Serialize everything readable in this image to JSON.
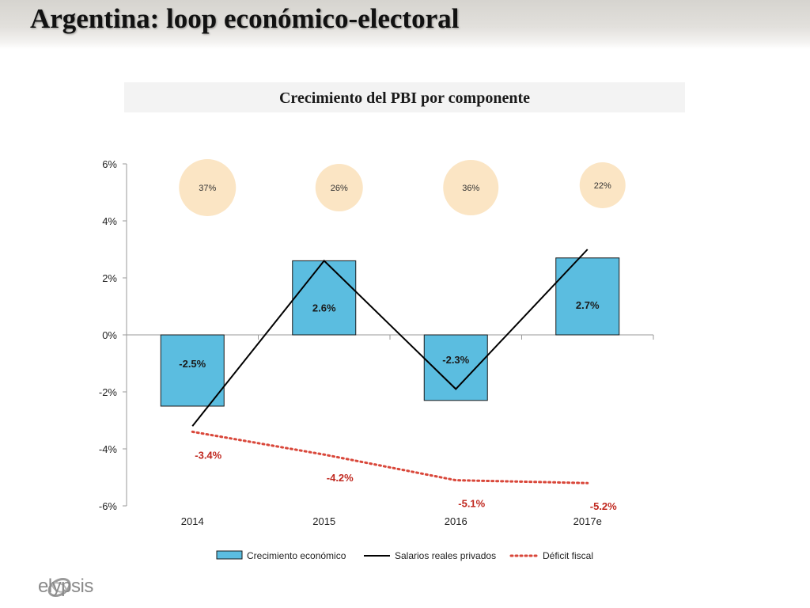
{
  "slide": {
    "title": "Argentina: loop económico-electoral",
    "brand": "elypsis"
  },
  "colors": {
    "bar_fill": "#5bbde0",
    "bar_stroke": "#1a1a1a",
    "wages_line": "#000000",
    "deficit_line": "#d9473a",
    "deficit_label": "#c0281f",
    "bubble_fill": "#fbe5c4"
  },
  "chart_data": {
    "type": "bar",
    "title": "Crecimiento del PBI por componente",
    "categories": [
      "2014",
      "2015",
      "2016",
      "2017e"
    ],
    "ylim": [
      -6,
      6
    ],
    "yticks": [
      6,
      4,
      2,
      0,
      -2,
      -4,
      -6
    ],
    "ytick_labels": [
      "6%",
      "4%",
      "2%",
      "0%",
      "-2%",
      "-4%",
      "-6%"
    ],
    "grid": false,
    "legend_position": "bottom",
    "series": [
      {
        "name": "Crecimiento económico",
        "kind": "bar",
        "values": [
          -2.5,
          2.6,
          -2.3,
          2.7
        ],
        "labels": [
          "-2.5%",
          "2.6%",
          "-2.3%",
          "2.7%"
        ]
      },
      {
        "name": "Salarios reales privados",
        "kind": "line",
        "values": [
          -3.2,
          2.6,
          -1.9,
          3.0
        ]
      },
      {
        "name": "Déficit fiscal",
        "kind": "dotted-line",
        "values": [
          -3.4,
          -4.2,
          -5.1,
          -5.2
        ],
        "labels": [
          "-3.4%",
          "-4.2%",
          "-5.1%",
          "-5.2%"
        ]
      }
    ],
    "bubbles": [
      {
        "label": "37%",
        "value": 37
      },
      {
        "label": "26%",
        "value": 26
      },
      {
        "label": "36%",
        "value": 36
      },
      {
        "label": "22%",
        "value": 22
      }
    ]
  }
}
